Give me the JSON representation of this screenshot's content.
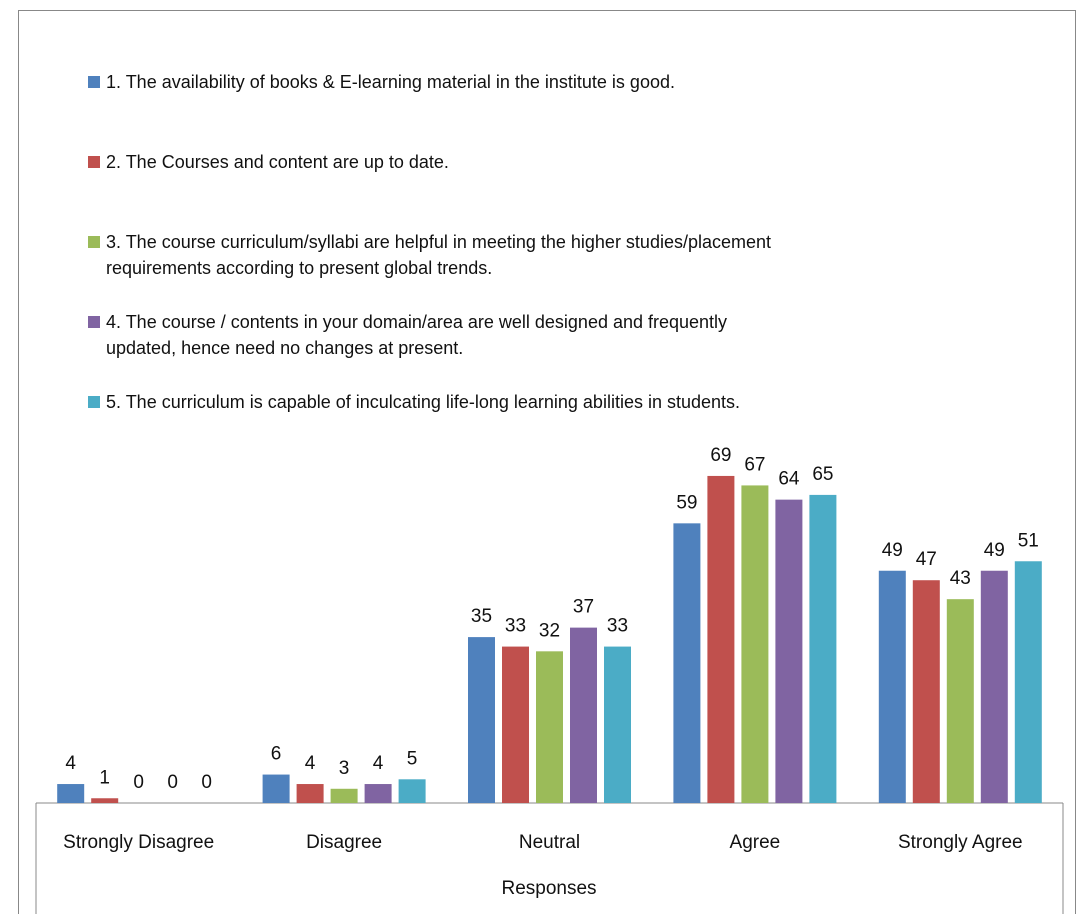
{
  "chart_data": {
    "type": "bar",
    "categories": [
      "Strongly Disagree",
      "Disagree",
      "Neutral",
      "Agree",
      "Strongly Agree"
    ],
    "x_label": "Responses",
    "series": [
      {
        "name": "1. The availability of books & E-learning material in the institute is good.",
        "color": "#4f81bd",
        "values": [
          4,
          6,
          35,
          59,
          49
        ]
      },
      {
        "name": "2. The Courses and content are up to date.",
        "color": "#c0504d",
        "values": [
          1,
          4,
          33,
          69,
          47
        ]
      },
      {
        "name": "3. The course curriculum/syllabi are helpful in meeting the higher studies/placement requirements according to present global trends.",
        "color": "#9bbb59",
        "values": [
          0,
          3,
          32,
          67,
          43
        ]
      },
      {
        "name": "4. The course / contents in your domain/area are well designed and frequently updated, hence need no changes at present.",
        "color": "#8064a2",
        "values": [
          0,
          4,
          37,
          64,
          49
        ]
      },
      {
        "name": "5. The curriculum is capable of inculcating life-long learning abilities in students.",
        "color": "#4bacc6",
        "values": [
          0,
          5,
          33,
          65,
          51
        ]
      }
    ],
    "legend": "top"
  }
}
